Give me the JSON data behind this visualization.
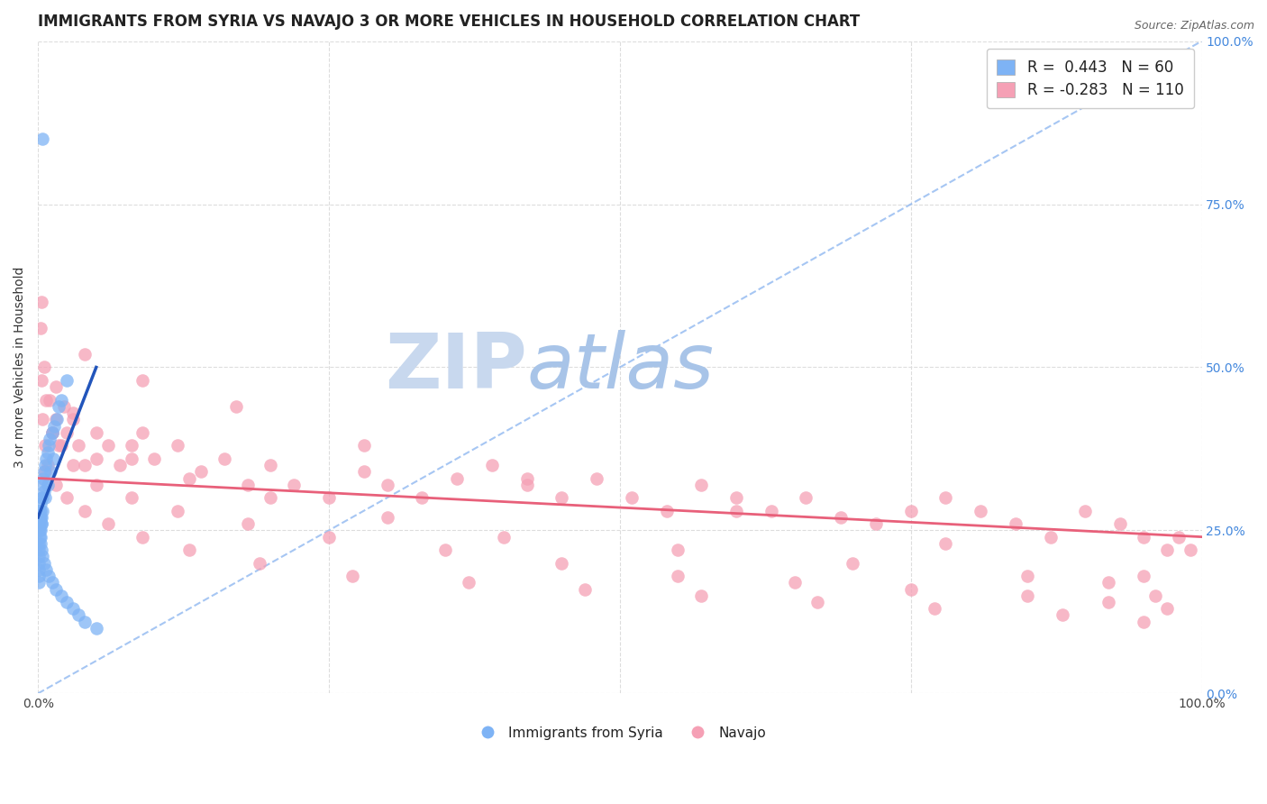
{
  "title": "IMMIGRANTS FROM SYRIA VS NAVAJO 3 OR MORE VEHICLES IN HOUSEHOLD CORRELATION CHART",
  "source": "Source: ZipAtlas.com",
  "ylabel": "3 or more Vehicles in Household",
  "xlim": [
    0,
    1.0
  ],
  "ylim": [
    0,
    1.0
  ],
  "blue_R": 0.443,
  "blue_N": 60,
  "pink_R": -0.283,
  "pink_N": 110,
  "blue_color": "#7EB3F5",
  "pink_color": "#F5A0B5",
  "blue_line_color": "#2255BB",
  "pink_line_color": "#E8607A",
  "dashed_line_color": "#90B8F0",
  "grid_color": "#DDDDDD",
  "background_color": "#FFFFFF",
  "blue_scatter_x": [
    0.0002,
    0.0003,
    0.0004,
    0.0005,
    0.0006,
    0.0007,
    0.0008,
    0.0009,
    0.001,
    0.001,
    0.0012,
    0.0013,
    0.0014,
    0.0015,
    0.0016,
    0.0018,
    0.002,
    0.002,
    0.002,
    0.0022,
    0.0024,
    0.0026,
    0.003,
    0.003,
    0.0032,
    0.0035,
    0.004,
    0.004,
    0.0045,
    0.005,
    0.005,
    0.006,
    0.007,
    0.008,
    0.009,
    0.01,
    0.012,
    0.014,
    0.016,
    0.018,
    0.02,
    0.025,
    0.003,
    0.004,
    0.005,
    0.007,
    0.009,
    0.012,
    0.015,
    0.02,
    0.025,
    0.03,
    0.035,
    0.04,
    0.05,
    0.006,
    0.008,
    0.011,
    0.013,
    0.004
  ],
  "blue_scatter_y": [
    0.28,
    0.26,
    0.25,
    0.23,
    0.22,
    0.21,
    0.2,
    0.19,
    0.18,
    0.17,
    0.28,
    0.27,
    0.26,
    0.25,
    0.24,
    0.23,
    0.29,
    0.27,
    0.25,
    0.24,
    0.28,
    0.26,
    0.3,
    0.27,
    0.26,
    0.28,
    0.32,
    0.3,
    0.33,
    0.34,
    0.31,
    0.35,
    0.36,
    0.37,
    0.38,
    0.39,
    0.4,
    0.41,
    0.42,
    0.44,
    0.45,
    0.48,
    0.22,
    0.21,
    0.2,
    0.19,
    0.18,
    0.17,
    0.16,
    0.15,
    0.14,
    0.13,
    0.12,
    0.11,
    0.1,
    0.3,
    0.32,
    0.34,
    0.36,
    0.85
  ],
  "pink_scatter_x": [
    0.002,
    0.003,
    0.004,
    0.006,
    0.008,
    0.01,
    0.012,
    0.015,
    0.018,
    0.022,
    0.025,
    0.03,
    0.035,
    0.04,
    0.05,
    0.06,
    0.07,
    0.08,
    0.09,
    0.1,
    0.12,
    0.14,
    0.16,
    0.18,
    0.2,
    0.22,
    0.25,
    0.28,
    0.3,
    0.33,
    0.36,
    0.39,
    0.42,
    0.45,
    0.48,
    0.51,
    0.54,
    0.57,
    0.6,
    0.63,
    0.66,
    0.69,
    0.72,
    0.75,
    0.78,
    0.81,
    0.84,
    0.87,
    0.9,
    0.93,
    0.95,
    0.97,
    0.98,
    0.99,
    0.003,
    0.007,
    0.012,
    0.02,
    0.03,
    0.05,
    0.08,
    0.12,
    0.18,
    0.25,
    0.35,
    0.45,
    0.55,
    0.65,
    0.75,
    0.85,
    0.92,
    0.97,
    0.006,
    0.015,
    0.025,
    0.04,
    0.06,
    0.09,
    0.13,
    0.19,
    0.27,
    0.37,
    0.47,
    0.57,
    0.67,
    0.77,
    0.88,
    0.95,
    0.005,
    0.015,
    0.03,
    0.05,
    0.08,
    0.13,
    0.2,
    0.3,
    0.4,
    0.55,
    0.7,
    0.85,
    0.92,
    0.96,
    0.04,
    0.09,
    0.17,
    0.28,
    0.42,
    0.6,
    0.78,
    0.95
  ],
  "pink_scatter_y": [
    0.56,
    0.6,
    0.42,
    0.38,
    0.35,
    0.45,
    0.4,
    0.42,
    0.38,
    0.44,
    0.4,
    0.42,
    0.38,
    0.35,
    0.36,
    0.38,
    0.35,
    0.38,
    0.4,
    0.36,
    0.38,
    0.34,
    0.36,
    0.32,
    0.35,
    0.32,
    0.3,
    0.34,
    0.32,
    0.3,
    0.33,
    0.35,
    0.32,
    0.3,
    0.33,
    0.3,
    0.28,
    0.32,
    0.3,
    0.28,
    0.3,
    0.27,
    0.26,
    0.28,
    0.3,
    0.28,
    0.26,
    0.24,
    0.28,
    0.26,
    0.24,
    0.22,
    0.24,
    0.22,
    0.48,
    0.45,
    0.4,
    0.38,
    0.35,
    0.32,
    0.3,
    0.28,
    0.26,
    0.24,
    0.22,
    0.2,
    0.18,
    0.17,
    0.16,
    0.15,
    0.14,
    0.13,
    0.34,
    0.32,
    0.3,
    0.28,
    0.26,
    0.24,
    0.22,
    0.2,
    0.18,
    0.17,
    0.16,
    0.15,
    0.14,
    0.13,
    0.12,
    0.11,
    0.5,
    0.47,
    0.43,
    0.4,
    0.36,
    0.33,
    0.3,
    0.27,
    0.24,
    0.22,
    0.2,
    0.18,
    0.17,
    0.15,
    0.52,
    0.48,
    0.44,
    0.38,
    0.33,
    0.28,
    0.23,
    0.18
  ],
  "blue_line_x": [
    0.0,
    0.05
  ],
  "blue_line_y": [
    0.27,
    0.5
  ],
  "pink_line_x": [
    0.0,
    1.0
  ],
  "pink_line_y": [
    0.33,
    0.24
  ],
  "dashed_line_x": [
    0.0,
    1.0
  ],
  "dashed_line_y": [
    0.0,
    1.0
  ],
  "watermark_zip": "ZIP",
  "watermark_atlas": "atlas",
  "watermark_zip_color": "#C8D8EE",
  "watermark_atlas_color": "#A8C4E8",
  "title_fontsize": 12,
  "axis_label_fontsize": 10,
  "tick_fontsize": 10,
  "legend_fontsize": 12,
  "source_fontsize": 9
}
